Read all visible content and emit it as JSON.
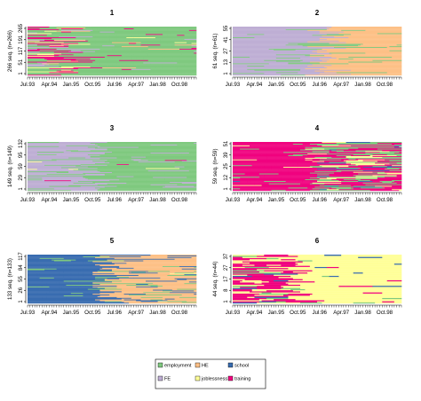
{
  "states": [
    {
      "code": "employment",
      "label": "employment",
      "color": "#7FC97F"
    },
    {
      "code": "FE",
      "label": "FE",
      "color": "#BEAED4"
    },
    {
      "code": "HE",
      "label": "HE",
      "color": "#FDC086"
    },
    {
      "code": "joblessness",
      "label": "joblessness",
      "color": "#FFFF99"
    },
    {
      "code": "school",
      "label": "school",
      "color": "#386CB0"
    },
    {
      "code": "training",
      "label": "training",
      "color": "#F0027F"
    }
  ],
  "time_ticks": [
    "Jul.93",
    "Apr.94",
    "Jan.95",
    "Oct.95",
    "Jul.96",
    "Apr.97",
    "Jan.98",
    "Oct.98"
  ],
  "months": 70,
  "chart_data": [
    {
      "type": "sequence-index",
      "title": "1",
      "ylabel": "266 seq. (n=266)",
      "n": 266,
      "yticks": [
        "1",
        "51",
        "117",
        "191",
        "265"
      ],
      "composition": [
        {
          "state": "employment",
          "share": 0.55
        },
        {
          "state": "training",
          "share": 0.25
        },
        {
          "state": "joblessness",
          "share": 0.08
        },
        {
          "state": "FE",
          "share": 0.07
        },
        {
          "state": "HE",
          "share": 0.05
        }
      ]
    },
    {
      "type": "sequence-index",
      "title": "2",
      "ylabel": "61 seq. (n=61)",
      "n": 61,
      "yticks": [
        "1",
        "13",
        "27",
        "41",
        "55"
      ],
      "composition": [
        {
          "state": "HE",
          "share": 0.45
        },
        {
          "state": "FE",
          "share": 0.45
        },
        {
          "state": "employment",
          "share": 0.07
        },
        {
          "state": "school",
          "share": 0.03
        }
      ]
    },
    {
      "type": "sequence-index",
      "title": "3",
      "ylabel": "149 seq. (n=149)",
      "n": 149,
      "yticks": [
        "1",
        "29",
        "59",
        "95",
        "132"
      ],
      "composition": [
        {
          "state": "employment",
          "share": 0.6
        },
        {
          "state": "FE",
          "share": 0.3
        },
        {
          "state": "joblessness",
          "share": 0.05
        },
        {
          "state": "training",
          "share": 0.05
        }
      ]
    },
    {
      "type": "sequence-index",
      "title": "4",
      "ylabel": "59 seq. (n=59)",
      "n": 59,
      "yticks": [
        "1",
        "12",
        "25",
        "39",
        "51"
      ],
      "composition": [
        {
          "state": "training",
          "share": 0.5
        },
        {
          "state": "employment",
          "share": 0.35
        },
        {
          "state": "joblessness",
          "share": 0.1
        },
        {
          "state": "school",
          "share": 0.05
        }
      ]
    },
    {
      "type": "sequence-index",
      "title": "5",
      "ylabel": "133 seq. (n=133)",
      "n": 133,
      "yticks": [
        "1",
        "26",
        "55",
        "84",
        "117"
      ],
      "composition": [
        {
          "state": "school",
          "share": 0.35
        },
        {
          "state": "HE",
          "share": 0.35
        },
        {
          "state": "employment",
          "share": 0.25
        },
        {
          "state": "joblessness",
          "share": 0.05
        }
      ]
    },
    {
      "type": "sequence-index",
      "title": "6",
      "ylabel": "44 seq. (n=44)",
      "n": 44,
      "yticks": [
        "1",
        "8",
        "17",
        "27",
        "37"
      ],
      "composition": [
        {
          "state": "joblessness",
          "share": 0.55
        },
        {
          "state": "training",
          "share": 0.2
        },
        {
          "state": "employment",
          "share": 0.15
        },
        {
          "state": "school",
          "share": 0.1
        }
      ]
    }
  ]
}
